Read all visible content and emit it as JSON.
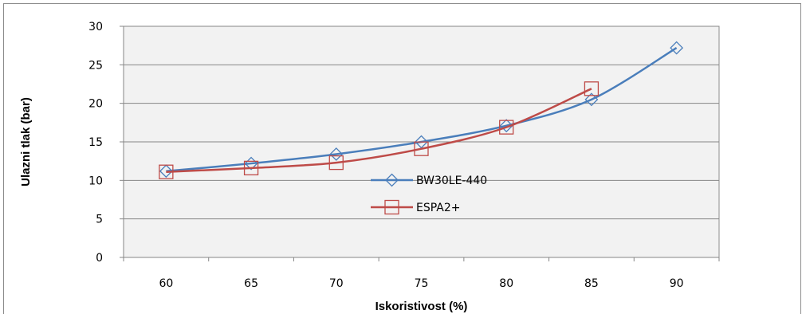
{
  "chart_data": {
    "type": "line",
    "xlabel": "Iskoristivost (%)",
    "ylabel": "Ulazni tlak (bar)",
    "categories": [
      "60",
      "65",
      "70",
      "75",
      "80",
      "85",
      "90"
    ],
    "ylim": [
      0,
      30
    ],
    "yticks": [
      0,
      5,
      10,
      15,
      20,
      25,
      30
    ],
    "grid": true,
    "legend_position": "center-right",
    "series": [
      {
        "name": "BW30LE-440",
        "color": "#4a7ebb",
        "marker": "diamond",
        "values": [
          11.2,
          12.2,
          13.4,
          15.0,
          17.1,
          20.5,
          27.2
        ]
      },
      {
        "name": "ESPA2+",
        "color": "#be4b48",
        "marker": "square",
        "values": [
          11.1,
          11.6,
          12.3,
          14.1,
          16.9,
          21.9,
          null
        ]
      }
    ]
  }
}
